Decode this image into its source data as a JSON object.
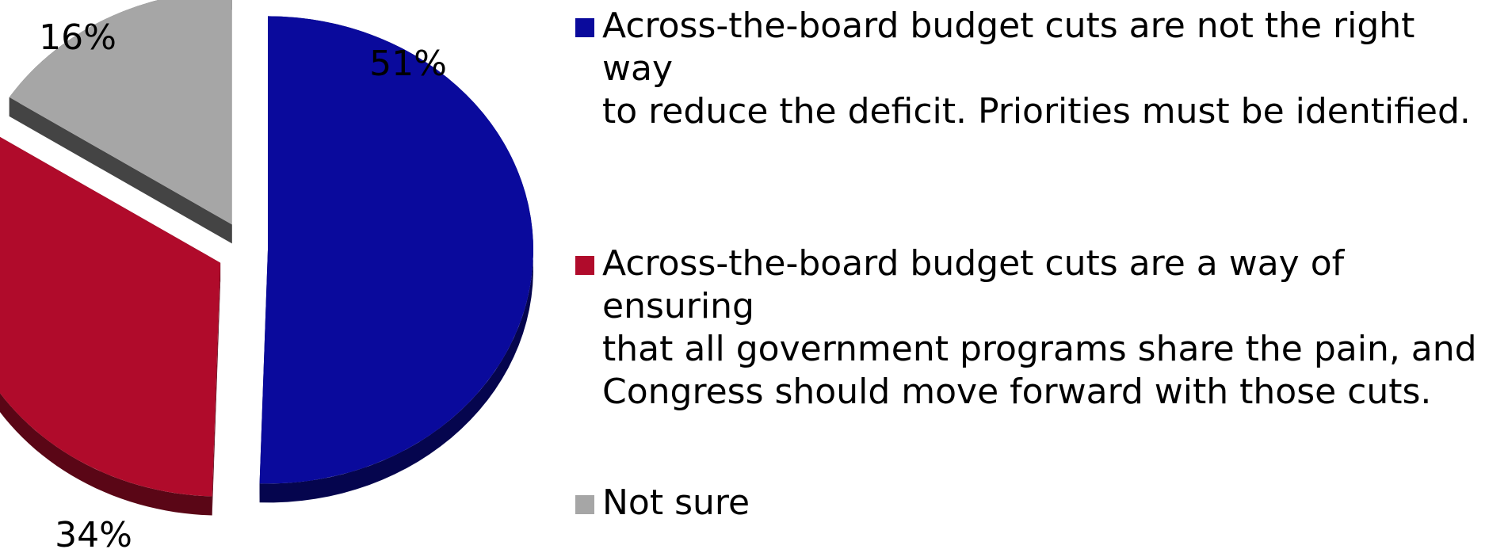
{
  "chart_data": {
    "type": "pie",
    "style": "3d-exploded",
    "slices": [
      {
        "label": "Across-the-board budget cuts are not the right way to reduce the deficit. Priorities must be identified.",
        "value": 51,
        "value_label": "51%",
        "color": "#0a0a9c",
        "side_color": "#05054e"
      },
      {
        "label": "Across-the-board budget cuts are a way of ensuring that all government programs share the pain, and Congress should move forward with those cuts.",
        "value": 34,
        "value_label": "34%",
        "color": "#b00b2b",
        "side_color": "#5a0616"
      },
      {
        "label": "Not sure",
        "value": 16,
        "value_label": "16%",
        "color": "#a6a6a6",
        "side_color": "#444444"
      }
    ]
  },
  "legend": {
    "placement": "right",
    "items": [
      {
        "text": "Across-the-board budget cuts are not the right way\nto reduce the deficit. Priorities must be identified.",
        "color": "#0a0a9c"
      },
      {
        "text": "Across-the-board budget cuts are a way of ensuring\nthat all government programs share the pain, and\nCongress should move forward with those cuts.",
        "color": "#b00b2b"
      },
      {
        "text": "Not sure",
        "color": "#a6a6a6"
      }
    ]
  }
}
